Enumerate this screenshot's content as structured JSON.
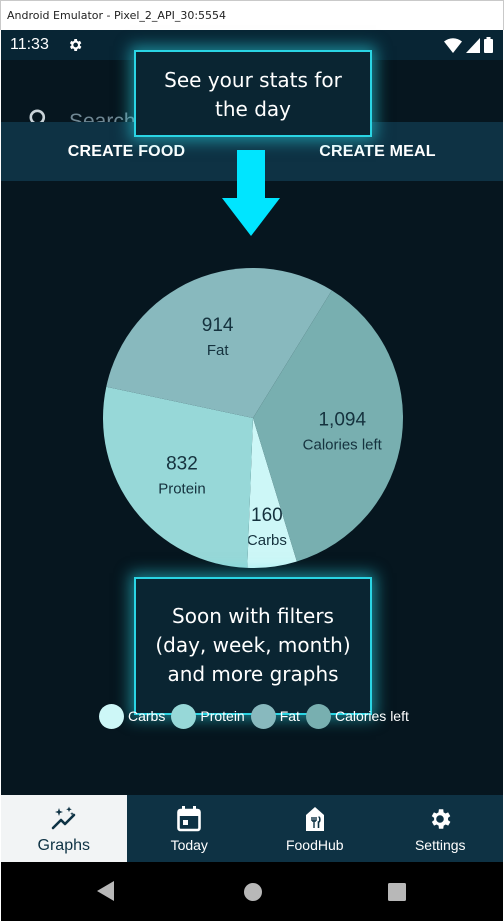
{
  "window": {
    "title": "Android Emulator - Pixel_2_API_30:5554"
  },
  "status_bar": {
    "time": "11:33",
    "icons": [
      "gear-icon",
      "wifi-icon",
      "signal-icon",
      "battery-icon"
    ]
  },
  "search": {
    "placeholder": "Search"
  },
  "actions": {
    "create_food": "CREATE FOOD",
    "create_meal": "CREATE MEAL"
  },
  "tooltips": {
    "top": [
      "See your stats for",
      "the day"
    ],
    "bottom": [
      "Soon with filters",
      "(day, week, month)",
      "and more graphs"
    ]
  },
  "chart_data": {
    "type": "pie",
    "slices": [
      {
        "label": "Carbs",
        "value": 160,
        "display": "160",
        "color": "#cdf7f7"
      },
      {
        "label": "Protein",
        "value": 832,
        "display": "832",
        "color": "#97d8d8"
      },
      {
        "label": "Fat",
        "value": 914,
        "display": "914",
        "color": "#88b9be"
      },
      {
        "label": "Calories left",
        "value": 1094,
        "display": "1,094",
        "color": "#78afb0"
      }
    ],
    "legend_placement": "bottom"
  },
  "legend": [
    "Carbs",
    "Protein",
    "Fat",
    "Calories left"
  ],
  "bottom_nav": [
    {
      "label": "Graphs",
      "icon": "sparkle-graph-icon",
      "active": true
    },
    {
      "label": "Today",
      "icon": "calendar-icon",
      "active": false
    },
    {
      "label": "FoodHub",
      "icon": "restaurant-icon",
      "active": false
    },
    {
      "label": "Settings",
      "icon": "settings-gear-icon",
      "active": false
    }
  ],
  "colors": {
    "accent": "#2ad5e4",
    "app_bar": "#0e3244",
    "background": "#06161f",
    "arrow": "#00e5ff"
  }
}
